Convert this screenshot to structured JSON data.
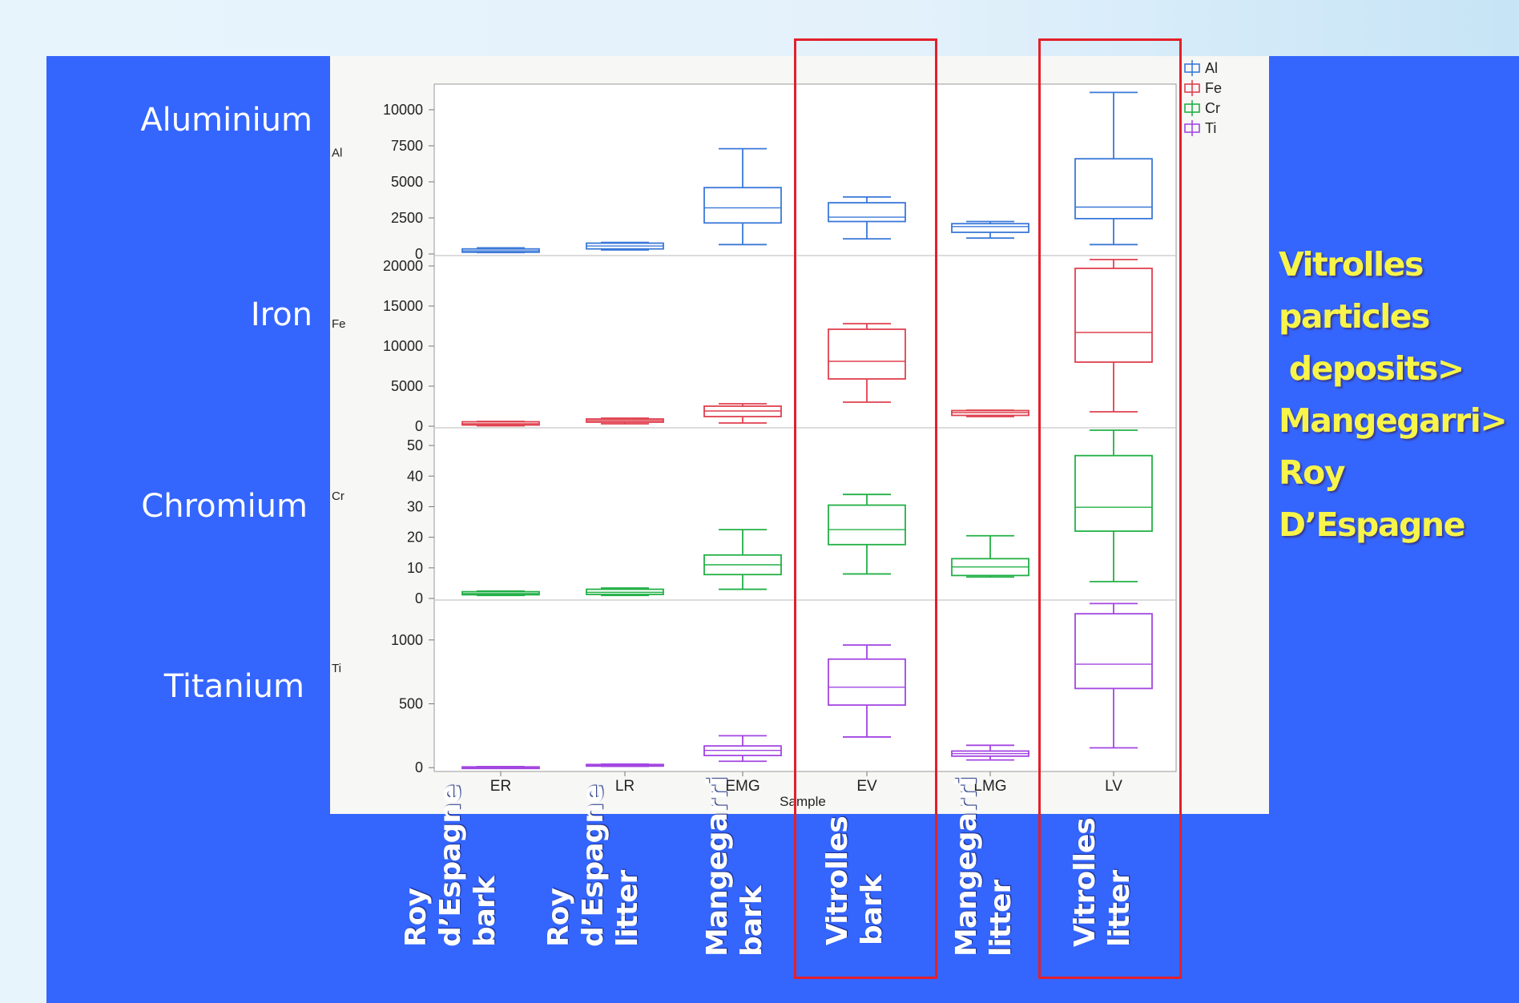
{
  "element_labels": [
    "Aluminium",
    "Iron",
    "Chromium",
    "Titanium"
  ],
  "conclusion": "Vitrolles\nparticles\n deposits>\nMangegarri>\nRoy\nD’Espagne",
  "sample_descriptions": [
    "Roy\nd’Espagne\nbark",
    "Roy\nd’Espagne\nlitter",
    "Mangegarri\nbark",
    "Vitrolles\nbark",
    "Mangegarri\nlitter",
    "Vitrolles\nlitter"
  ],
  "highlight_color": "#e3202a",
  "chart_data": {
    "type": "boxplot",
    "xlabel": "Sample",
    "categories": [
      "ER",
      "LR",
      "EMG",
      "EV",
      "LMG",
      "LV"
    ],
    "legend": {
      "position": "top-right",
      "entries": [
        "Al",
        "Fe",
        "Cr",
        "Ti"
      ]
    },
    "panels": [
      {
        "ylabel": "Al",
        "color": "#3a78d8",
        "ylim": [
          0,
          11500
        ],
        "ticks": [
          0,
          2500,
          5000,
          7500,
          10000
        ],
        "boxes": [
          {
            "min": 100,
            "q1": 120,
            "median": 220,
            "q3": 350,
            "max": 420
          },
          {
            "min": 280,
            "q1": 350,
            "median": 550,
            "q3": 750,
            "max": 800
          },
          {
            "min": 650,
            "q1": 2150,
            "median": 3200,
            "q3": 4600,
            "max": 7300
          },
          {
            "min": 1050,
            "q1": 2250,
            "median": 2550,
            "q3": 3550,
            "max": 3950
          },
          {
            "min": 1100,
            "q1": 1500,
            "median": 1900,
            "q3": 2100,
            "max": 2250
          },
          {
            "min": 650,
            "q1": 2450,
            "median": 3250,
            "q3": 6600,
            "max": 11200
          }
        ]
      },
      {
        "ylabel": "Fe",
        "color": "#e0404f",
        "ylim": [
          0,
          21000
        ],
        "ticks": [
          0,
          5000,
          10000,
          15000,
          20000
        ],
        "boxes": [
          {
            "min": 50,
            "q1": 150,
            "median": 300,
            "q3": 550,
            "max": 600
          },
          {
            "min": 300,
            "q1": 500,
            "median": 700,
            "q3": 900,
            "max": 1000
          },
          {
            "min": 400,
            "q1": 1200,
            "median": 1900,
            "q3": 2500,
            "max": 2800
          },
          {
            "min": 3000,
            "q1": 5900,
            "median": 8100,
            "q3": 12100,
            "max": 12800
          },
          {
            "min": 1200,
            "q1": 1350,
            "median": 1700,
            "q3": 1950,
            "max": 2000
          },
          {
            "min": 1800,
            "q1": 8000,
            "median": 11700,
            "q3": 19700,
            "max": 20800
          }
        ]
      },
      {
        "ylabel": "Cr",
        "color": "#22b046",
        "ylim": [
          0,
          55
        ],
        "ticks": [
          0,
          10,
          20,
          30,
          40,
          50
        ],
        "boxes": [
          {
            "min": 1,
            "q1": 1.2,
            "median": 1.6,
            "q3": 2.2,
            "max": 2.4
          },
          {
            "min": 1,
            "q1": 1.3,
            "median": 2,
            "q3": 3,
            "max": 3.4
          },
          {
            "min": 3,
            "q1": 7.8,
            "median": 11,
            "q3": 14.2,
            "max": 22.5
          },
          {
            "min": 8,
            "q1": 17.6,
            "median": 22.5,
            "q3": 30.5,
            "max": 34
          },
          {
            "min": 7,
            "q1": 7.5,
            "median": 10.3,
            "q3": 13,
            "max": 20.5
          },
          {
            "min": 5.5,
            "q1": 22,
            "median": 29.8,
            "q3": 46.7,
            "max": 55
          }
        ]
      },
      {
        "ylabel": "Ti",
        "color": "#a346e2",
        "ylim": [
          -30,
          1300
        ],
        "ticks": [
          0,
          500,
          1000
        ],
        "boxes": [
          {
            "min": 0,
            "q1": 0,
            "median": 2,
            "q3": 6,
            "max": 8
          },
          {
            "min": 10,
            "q1": 12,
            "median": 18,
            "q3": 25,
            "max": 28
          },
          {
            "min": 50,
            "q1": 95,
            "median": 135,
            "q3": 170,
            "max": 250
          },
          {
            "min": 240,
            "q1": 490,
            "median": 630,
            "q3": 850,
            "max": 960
          },
          {
            "min": 60,
            "q1": 90,
            "median": 110,
            "q3": 130,
            "max": 175
          },
          {
            "min": 155,
            "q1": 620,
            "median": 810,
            "q3": 1205,
            "max": 1285
          }
        ]
      }
    ]
  }
}
